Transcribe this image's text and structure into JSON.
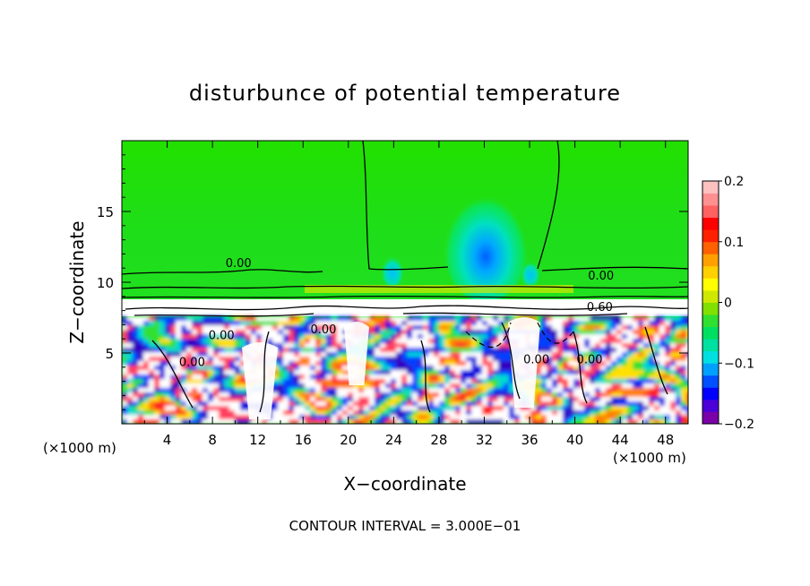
{
  "chart_data": {
    "type": "heatmap",
    "title": "disturbunce of potential temperature",
    "xlabel": "X−coordinate",
    "ylabel": "Z−coordinate",
    "x_unit_left": "(×1000 m)",
    "x_unit_right": "(×1000 m)",
    "footer": "CONTOUR INTERVAL = 3.000E−01",
    "xlim": [
      0,
      50
    ],
    "ylim": [
      0,
      20
    ],
    "x_ticks": [
      4,
      8,
      12,
      16,
      20,
      24,
      28,
      32,
      36,
      40,
      44,
      48
    ],
    "x_tick_labels": [
      "4",
      "8",
      "12",
      "16",
      "20",
      "24",
      "28",
      "32",
      "36",
      "40",
      "44",
      "48"
    ],
    "y_ticks": [
      5,
      10,
      15
    ],
    "y_tick_labels": [
      "5",
      "10",
      "15"
    ],
    "colorbar": {
      "range": [
        -0.2,
        0.2
      ],
      "ticks": [
        0.2,
        0.1,
        0,
        -0.1,
        -0.2
      ],
      "tick_labels": [
        "0.2",
        "0.1",
        "0",
        "−0.1",
        "−0.2"
      ],
      "colors": [
        "#7a00a8",
        "#4b00d8",
        "#0000ff",
        "#0050ff",
        "#00a0ff",
        "#00e0e0",
        "#00e0a0",
        "#00e060",
        "#30e030",
        "#80e000",
        "#d0e800",
        "#ffff00",
        "#ffd000",
        "#ffa000",
        "#ff6000",
        "#ff2000",
        "#ff0000",
        "#ff6060",
        "#ff9090",
        "#ffc0c0"
      ]
    },
    "contour_labels": [
      {
        "text": "0.00",
        "x": 10.3,
        "z": 11.4
      },
      {
        "text": "0.00",
        "x": 42.3,
        "z": 10.5
      },
      {
        "text": "0.60",
        "x": 42.2,
        "z": 8.3
      },
      {
        "text": "0.00",
        "x": 8.8,
        "z": 6.3
      },
      {
        "text": "0.00",
        "x": 17.8,
        "z": 6.7
      },
      {
        "text": "0.00",
        "x": 6.2,
        "z": 4.4
      },
      {
        "text": "0.00",
        "x": 36.6,
        "z": 4.6
      },
      {
        "text": "0.00",
        "x": 41.3,
        "z": 4.6
      }
    ]
  }
}
